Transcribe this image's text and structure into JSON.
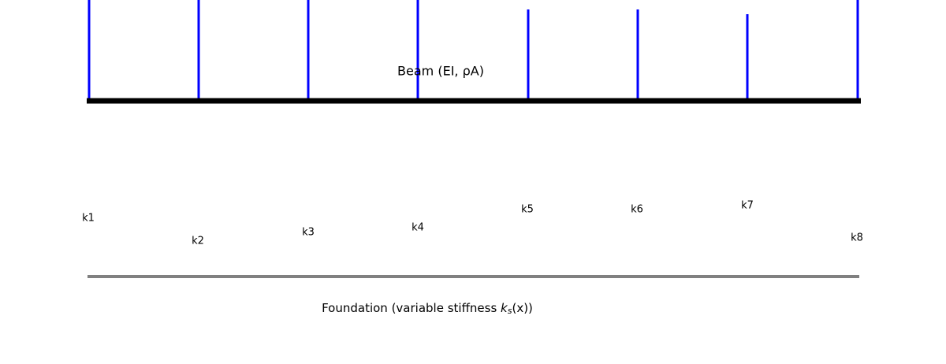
{
  "beam": {
    "label": "Beam (EI, ρA)"
  },
  "foundation": {
    "label": {
      "prefix": "Foundation (variable stiffness ",
      "symbol": "k",
      "subscript": "s",
      "suffix": "(x))"
    }
  },
  "springs": [
    {
      "label": "k1"
    },
    {
      "label": "k2"
    },
    {
      "label": "k3"
    },
    {
      "label": "k4"
    },
    {
      "label": "k5"
    },
    {
      "label": "k6"
    },
    {
      "label": "k7"
    },
    {
      "label": "k8"
    }
  ]
}
